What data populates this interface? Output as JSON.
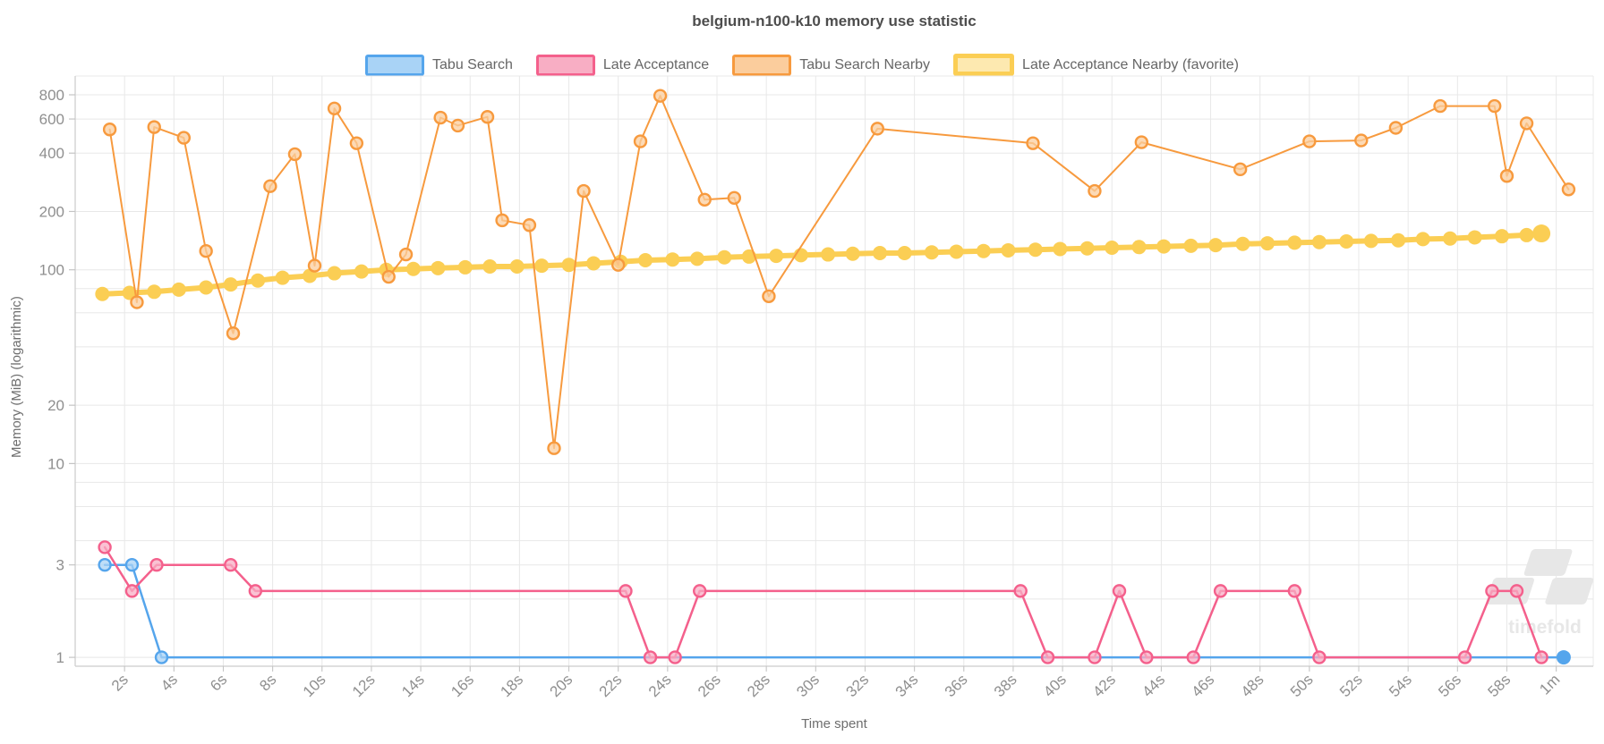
{
  "title": "belgium-n100-k10 memory use statistic",
  "watermark_text": "timefold",
  "colors": {
    "grid": "#e8e8e8",
    "axis_border": "#cccccc",
    "tick_mark": "#c4c4c4",
    "tick_label": "#8f8f8f",
    "title_text": "#4d4d4d",
    "axis_title_text": "#6e6e6e",
    "legend_text": "#666666",
    "watermark": "#e7e7e7"
  },
  "chart_data": {
    "type": "line",
    "title": "belgium-n100-k10 memory use statistic",
    "xlabel": "Time spent",
    "ylabel": "Memory (MiB) (logarithmic)",
    "x_scale": "linear-seconds",
    "y_scale": "log",
    "x_domain": [
      0,
      61.5
    ],
    "y_domain": [
      0.9,
      1000
    ],
    "grid": true,
    "legend_position": "top",
    "x_tick_seconds": [
      2,
      4,
      6,
      8,
      10,
      12,
      14,
      16,
      18,
      20,
      22,
      24,
      26,
      28,
      30,
      32,
      34,
      36,
      38,
      40,
      42,
      44,
      46,
      48,
      50,
      52,
      54,
      56,
      58,
      60
    ],
    "x_tick_labels": [
      "2s",
      "4s",
      "6s",
      "8s",
      "10s",
      "12s",
      "14s",
      "16s",
      "18s",
      "20s",
      "22s",
      "24s",
      "26s",
      "28s",
      "30s",
      "32s",
      "34s",
      "36s",
      "38s",
      "40s",
      "42s",
      "44s",
      "46s",
      "48s",
      "50s",
      "52s",
      "54s",
      "56s",
      "58s",
      "1m"
    ],
    "y_tick_values": [
      800,
      600,
      400,
      200,
      100,
      20,
      10,
      3,
      1
    ],
    "y_tick_labels": [
      "800",
      "600",
      "400",
      "200",
      "100",
      "20",
      "10",
      "3",
      "1"
    ],
    "y_gridlines": [
      1,
      2,
      3,
      4,
      6,
      8,
      10,
      20,
      40,
      60,
      80,
      100,
      200,
      400,
      600,
      800,
      1000
    ],
    "series": [
      {
        "name": "Tabu Search",
        "color": "#55a5ec",
        "fill": "#a9d3f6",
        "style": "ring",
        "line_width": 2.5,
        "last_point_solid": true,
        "points": [
          [
            1.2,
            3
          ],
          [
            2.3,
            3
          ],
          [
            3.5,
            1
          ],
          [
            60.3,
            1
          ]
        ]
      },
      {
        "name": "Late Acceptance",
        "color": "#f4608c",
        "fill": "#f8aec4",
        "style": "ring",
        "line_width": 2.5,
        "last_point_solid": false,
        "points": [
          [
            1.2,
            3.7
          ],
          [
            2.3,
            2.2
          ],
          [
            3.3,
            3
          ],
          [
            6.3,
            3
          ],
          [
            7.3,
            2.2
          ],
          [
            22.3,
            2.2
          ],
          [
            23.3,
            1
          ],
          [
            24.3,
            1
          ],
          [
            25.3,
            2.2
          ],
          [
            38.3,
            2.2
          ],
          [
            39.4,
            1
          ],
          [
            41.3,
            1
          ],
          [
            42.3,
            2.2
          ],
          [
            43.4,
            1
          ],
          [
            45.3,
            1
          ],
          [
            46.4,
            2.2
          ],
          [
            49.4,
            2.2
          ],
          [
            50.4,
            1
          ],
          [
            56.3,
            1
          ],
          [
            57.4,
            2.2
          ],
          [
            58.4,
            2.2
          ],
          [
            59.4,
            1
          ]
        ]
      },
      {
        "name": "Tabu Search Nearby",
        "color": "#f79a3e",
        "fill": "#fbcd9d",
        "style": "ring",
        "line_width": 2,
        "last_point_solid": false,
        "points": [
          [
            1.4,
            530
          ],
          [
            2.5,
            68
          ],
          [
            3.2,
            545
          ],
          [
            4.4,
            480
          ],
          [
            5.3,
            125
          ],
          [
            6.4,
            47
          ],
          [
            7.9,
            270
          ],
          [
            8.9,
            395
          ],
          [
            9.7,
            105
          ],
          [
            10.5,
            680
          ],
          [
            11.4,
            450
          ],
          [
            12.7,
            92
          ],
          [
            13.4,
            120
          ],
          [
            14.8,
            610
          ],
          [
            15.5,
            555
          ],
          [
            16.7,
            615
          ],
          [
            17.3,
            180
          ],
          [
            18.4,
            170
          ],
          [
            19.4,
            12
          ],
          [
            20.6,
            255
          ],
          [
            22.0,
            106
          ],
          [
            22.9,
            460
          ],
          [
            23.7,
            790
          ],
          [
            25.5,
            230
          ],
          [
            26.7,
            235
          ],
          [
            28.1,
            73
          ],
          [
            32.5,
            535
          ],
          [
            38.8,
            450
          ],
          [
            41.3,
            255
          ],
          [
            43.2,
            455
          ],
          [
            47.2,
            330
          ],
          [
            50.0,
            460
          ],
          [
            52.1,
            465
          ],
          [
            53.5,
            540
          ],
          [
            55.3,
            700
          ],
          [
            57.5,
            700
          ],
          [
            58.0,
            305
          ],
          [
            58.8,
            570
          ],
          [
            60.5,
            260
          ]
        ]
      },
      {
        "name": "Late Acceptance Nearby (favorite)",
        "color": "#fbce54",
        "fill": "#fde9b0",
        "style": "solid",
        "line_width": 6,
        "favorite": true,
        "last_point_solid": true,
        "points": [
          [
            1.1,
            75
          ],
          [
            2.2,
            76
          ],
          [
            3.2,
            77
          ],
          [
            4.2,
            79
          ],
          [
            5.3,
            81
          ],
          [
            6.3,
            84
          ],
          [
            7.4,
            88
          ],
          [
            8.4,
            91
          ],
          [
            9.5,
            93
          ],
          [
            10.5,
            96
          ],
          [
            11.6,
            98
          ],
          [
            12.6,
            100
          ],
          [
            13.7,
            101
          ],
          [
            14.7,
            102
          ],
          [
            15.8,
            103
          ],
          [
            16.8,
            104
          ],
          [
            17.9,
            104
          ],
          [
            18.9,
            105
          ],
          [
            20.0,
            106
          ],
          [
            21.0,
            108
          ],
          [
            22.1,
            110
          ],
          [
            23.1,
            112
          ],
          [
            24.2,
            113
          ],
          [
            25.2,
            114
          ],
          [
            26.3,
            116
          ],
          [
            27.3,
            117
          ],
          [
            28.4,
            118
          ],
          [
            29.4,
            119
          ],
          [
            30.5,
            120
          ],
          [
            31.5,
            121
          ],
          [
            32.6,
            122
          ],
          [
            33.6,
            122
          ],
          [
            34.7,
            123
          ],
          [
            35.7,
            124
          ],
          [
            36.8,
            125
          ],
          [
            37.8,
            126
          ],
          [
            38.9,
            127
          ],
          [
            39.9,
            128
          ],
          [
            41.0,
            129
          ],
          [
            42.0,
            130
          ],
          [
            43.1,
            131
          ],
          [
            44.1,
            132
          ],
          [
            45.2,
            133
          ],
          [
            46.2,
            134
          ],
          [
            47.3,
            136
          ],
          [
            48.3,
            137
          ],
          [
            49.4,
            138
          ],
          [
            50.4,
            139
          ],
          [
            51.5,
            140
          ],
          [
            52.5,
            141
          ],
          [
            53.6,
            142
          ],
          [
            54.6,
            144
          ],
          [
            55.7,
            145
          ],
          [
            56.7,
            147
          ],
          [
            57.8,
            149
          ],
          [
            58.8,
            151
          ],
          [
            59.4,
            154
          ]
        ]
      }
    ]
  }
}
